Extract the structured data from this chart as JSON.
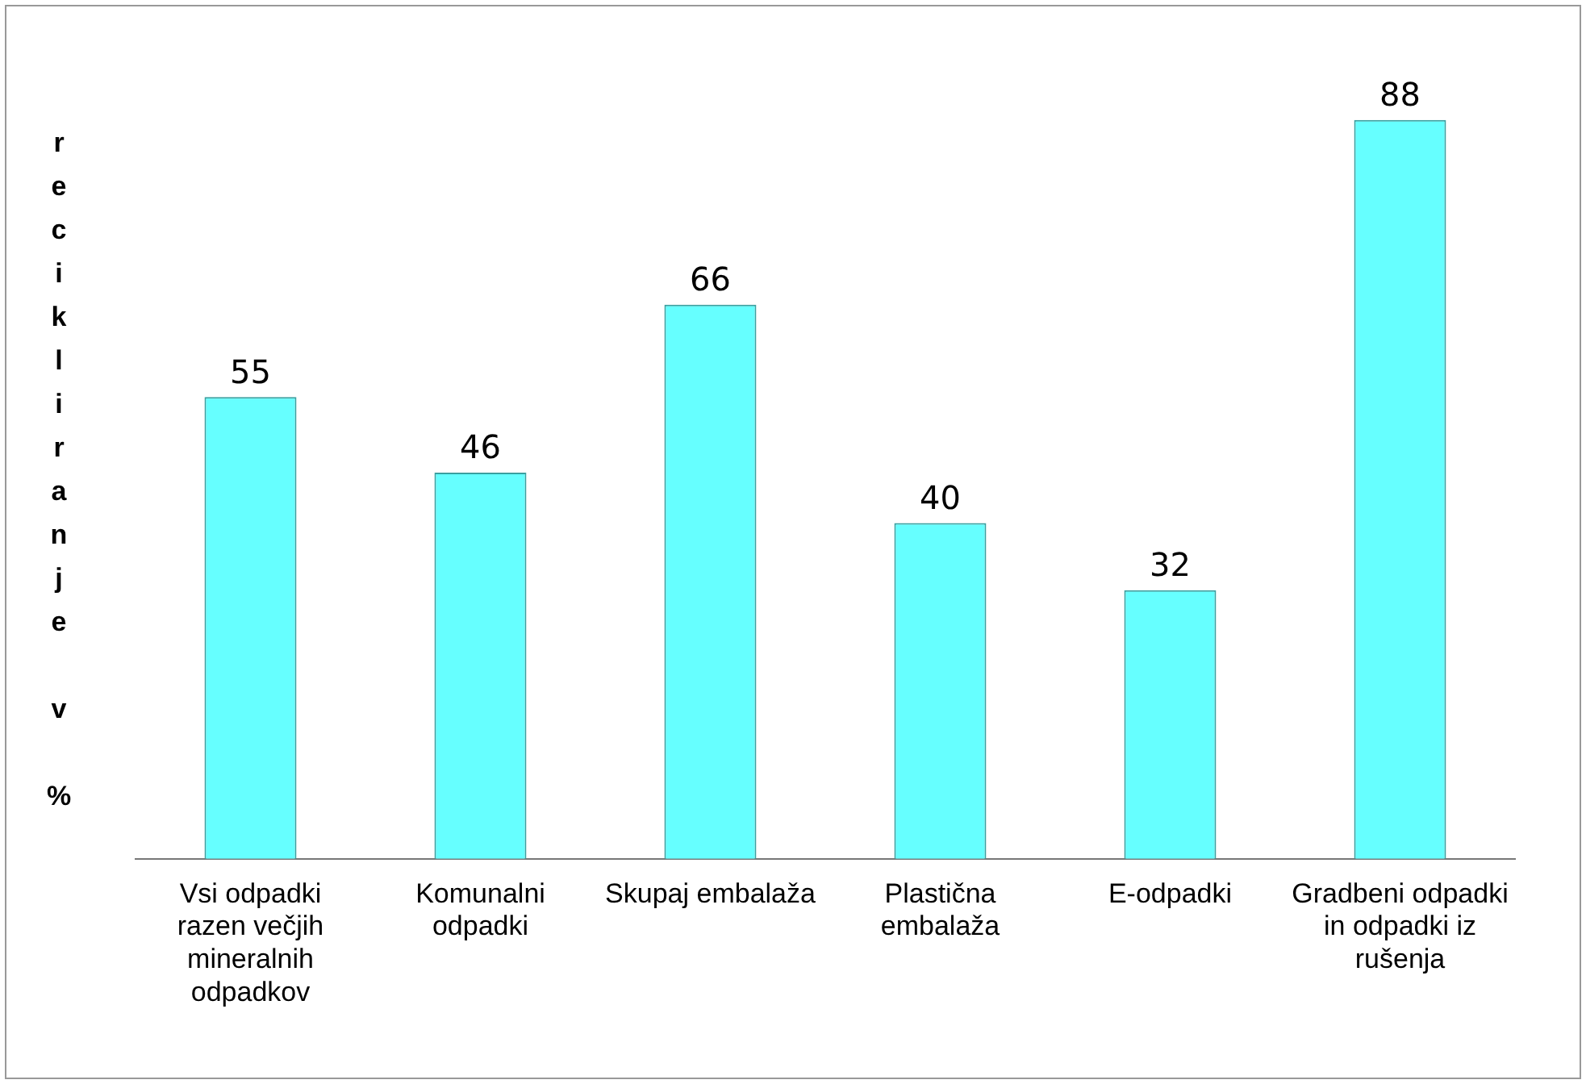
{
  "chart_data": {
    "type": "bar",
    "ylabel": "recikliranje v %",
    "categories": [
      "Vsi odpadki razen večjih mineralnih odpadkov",
      "Komunalni odpadki",
      "Skupaj embalaža",
      "Plastična embalaža",
      "E-odpadki",
      "Gradbeni odpadki in odpadki iz rušenja"
    ],
    "values": [
      55,
      46,
      66,
      40,
      32,
      88
    ],
    "color": "#66ffff",
    "data_labels": true,
    "grid": false,
    "legend": false
  }
}
